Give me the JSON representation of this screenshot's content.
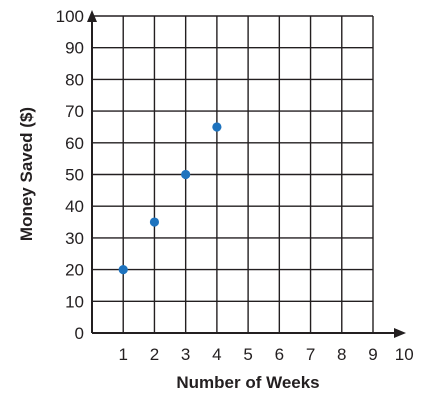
{
  "chart_data": {
    "type": "scatter",
    "title": "",
    "xlabel": "Number of Weeks",
    "ylabel": "Money Saved ($)",
    "xlim": [
      0,
      10
    ],
    "ylim": [
      0,
      100
    ],
    "x_ticks": [
      1,
      2,
      3,
      4,
      5,
      6,
      7,
      8,
      9,
      10
    ],
    "y_ticks": [
      0,
      10,
      20,
      30,
      40,
      50,
      60,
      70,
      80,
      90,
      100
    ],
    "grid": true,
    "legend": "none",
    "colors": {
      "point": "#1e73be",
      "grid": "#231f20",
      "text": "#231f20"
    },
    "series": [
      {
        "x": [
          1,
          2,
          3,
          4
        ],
        "y": [
          20,
          35,
          50,
          65
        ]
      }
    ]
  }
}
